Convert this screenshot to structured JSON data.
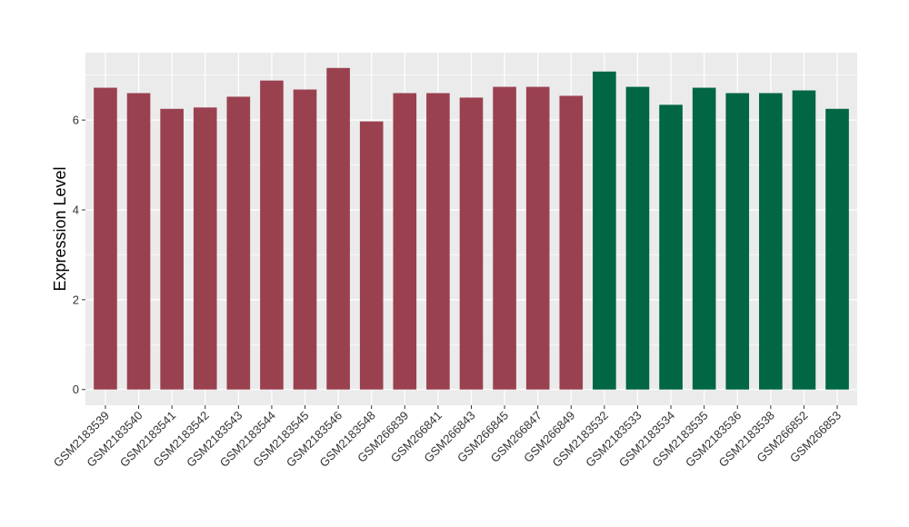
{
  "chart_data": {
    "type": "bar",
    "title": "",
    "xlabel": "",
    "ylabel": "Expression Level",
    "ylim": [
      -0.35,
      7.5
    ],
    "yticks": [
      0,
      2,
      4,
      6
    ],
    "grid": true,
    "legend": "none",
    "colors": {
      "group1": "#9a4150",
      "group2": "#006644",
      "panel": "#ebebeb",
      "gridline": "#ffffff"
    },
    "categories": [
      "GSM2183539",
      "GSM2183540",
      "GSM2183541",
      "GSM2183542",
      "GSM2183543",
      "GSM2183544",
      "GSM2183545",
      "GSM2183546",
      "GSM2183548",
      "GSM266839",
      "GSM266841",
      "GSM266843",
      "GSM266845",
      "GSM266847",
      "GSM266849",
      "GSM2183532",
      "GSM2183533",
      "GSM2183534",
      "GSM2183535",
      "GSM2183536",
      "GSM2183538",
      "GSM266852",
      "GSM266853"
    ],
    "values": [
      6.72,
      6.6,
      6.25,
      6.28,
      6.52,
      6.88,
      6.68,
      7.16,
      5.97,
      6.6,
      6.6,
      6.5,
      6.74,
      6.74,
      6.54,
      7.08,
      6.74,
      6.34,
      6.72,
      6.6,
      6.6,
      6.66,
      6.25
    ],
    "groups": [
      1,
      1,
      1,
      1,
      1,
      1,
      1,
      1,
      1,
      1,
      1,
      1,
      1,
      1,
      1,
      2,
      2,
      2,
      2,
      2,
      2,
      2,
      2
    ]
  }
}
